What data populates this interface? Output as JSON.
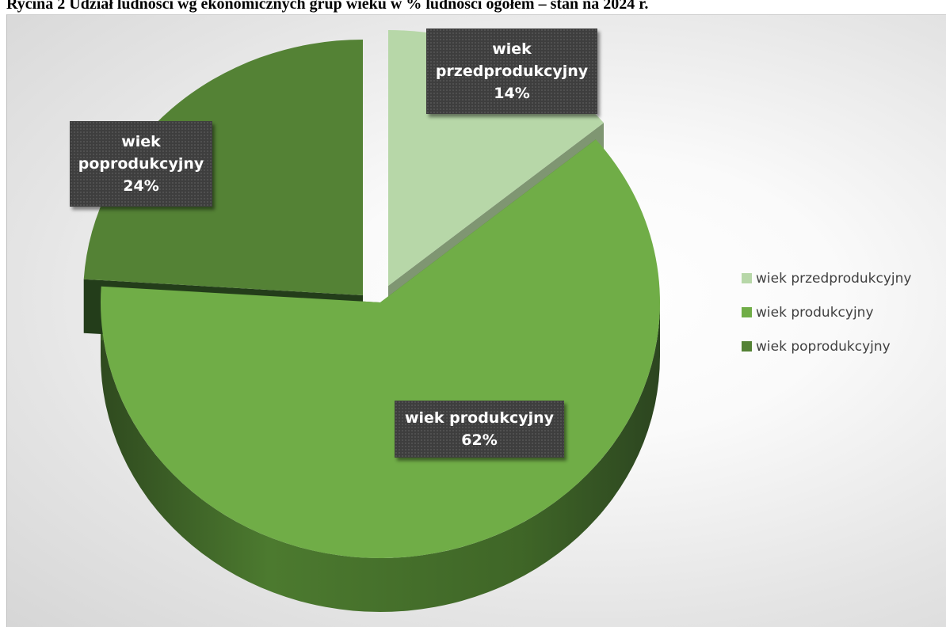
{
  "chart_data": {
    "type": "pie",
    "title": "Rycina 2 Udział ludności wg ekonomicznych grup wieku w % ludności ogółem – stan na 2024 r.",
    "categories": [
      "wiek przedprodukcyjny",
      "wiek produkcyjny",
      "wiek poprodukcyjny"
    ],
    "values": [
      14,
      62,
      24
    ],
    "unit": "%",
    "data_labels": [
      {
        "lines": [
          "wiek",
          "przedprodukcyjny",
          "14%"
        ]
      },
      {
        "lines": [
          "wiek produkcyjny",
          "62%"
        ]
      },
      {
        "lines": [
          "wiek",
          "poprodukcyjny",
          "24%"
        ]
      }
    ],
    "legend": {
      "position": "right",
      "entries": [
        "wiek przedprodukcyjny",
        "wiek produkcyjny",
        "wiek poprodukcyjny"
      ]
    },
    "colors": {
      "wiek przedprodukcyjny": "#b7d7a8",
      "wiek produkcyjny": "#70ad47",
      "wiek poprodukcyjny": "#548235"
    },
    "style": "3d-exploded"
  }
}
